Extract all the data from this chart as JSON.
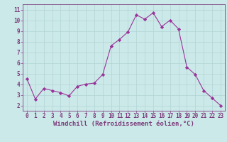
{
  "x": [
    0,
    1,
    2,
    3,
    4,
    5,
    6,
    7,
    8,
    9,
    10,
    11,
    12,
    13,
    14,
    15,
    16,
    17,
    18,
    19,
    20,
    21,
    22,
    23
  ],
  "y": [
    4.5,
    2.6,
    3.6,
    3.4,
    3.2,
    2.9,
    3.8,
    4.0,
    4.1,
    4.9,
    7.6,
    8.2,
    8.9,
    10.5,
    10.1,
    10.7,
    9.4,
    10.0,
    9.2,
    5.6,
    4.9,
    3.4,
    2.7,
    2.0
  ],
  "line_color": "#993399",
  "marker": "D",
  "marker_size": 2.2,
  "bg_color": "#cce9e9",
  "grid_color": "#b0d4d4",
  "xlabel": "Windchill (Refroidissement éolien,°C)",
  "xlim": [
    -0.5,
    23.5
  ],
  "ylim": [
    1.5,
    11.5
  ],
  "yticks": [
    2,
    3,
    4,
    5,
    6,
    7,
    8,
    9,
    10,
    11
  ],
  "xticks": [
    0,
    1,
    2,
    3,
    4,
    5,
    6,
    7,
    8,
    9,
    10,
    11,
    12,
    13,
    14,
    15,
    16,
    17,
    18,
    19,
    20,
    21,
    22,
    23
  ],
  "tick_color": "#993399",
  "label_color": "#7b3b7b",
  "spine_color": "#7b3b7b",
  "axis_fontsize": 5.5,
  "xlabel_fontsize": 6.5
}
